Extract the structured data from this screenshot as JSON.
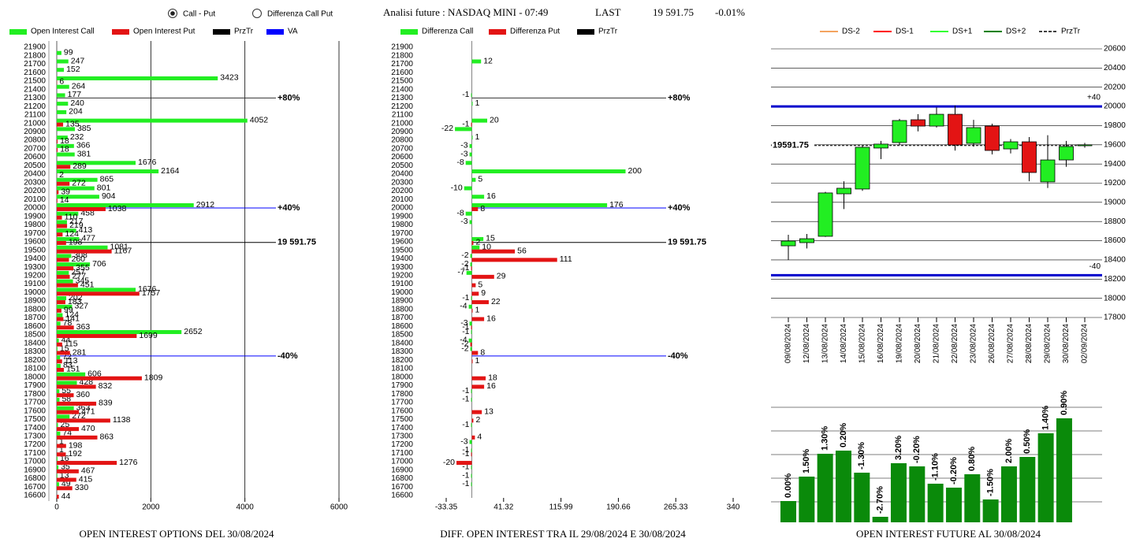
{
  "header": {
    "radio_options": [
      "Call - Put",
      "Differenza Call Put"
    ],
    "selected": 0,
    "title": "Analisi future : NASDAQ MINI - 07:49",
    "last_label": "LAST",
    "last_value": "19 591.75",
    "change": "-0.01%"
  },
  "chart_data": [
    {
      "type": "hbar",
      "title": "OPEN INTEREST OPTIONS DEL 30/08/2024",
      "categories": [
        21900,
        21800,
        21700,
        21600,
        21500,
        21400,
        21300,
        21200,
        21100,
        21000,
        20900,
        20800,
        20700,
        20600,
        20500,
        20400,
        20300,
        20200,
        20100,
        20000,
        19900,
        19800,
        19700,
        19600,
        19500,
        19400,
        19300,
        19200,
        19100,
        19000,
        18900,
        18800,
        18700,
        18600,
        18500,
        18400,
        18300,
        18200,
        18100,
        18000,
        17900,
        17800,
        17700,
        17600,
        17500,
        17400,
        17300,
        17200,
        17100,
        17000,
        16900,
        16800,
        16700,
        16600
      ],
      "series": [
        {
          "name": "Open Interest Call",
          "color": "#22ee22",
          "values": [
            0,
            99,
            247,
            152,
            3423,
            264,
            177,
            240,
            204,
            4052,
            385,
            232,
            366,
            381,
            1676,
            2164,
            865,
            801,
            904,
            2912,
            458,
            217,
            413,
            477,
            1081,
            308,
            706,
            257,
            345,
            1676,
            202,
            327,
            124,
            78,
            2652,
            44,
            15,
            72,
            83,
            606,
            428,
            55,
            58,
            363,
            272,
            25,
            74,
            1,
            1,
            16,
            35,
            13,
            49,
            0
          ]
        },
        {
          "name": "Open Interest Put",
          "color": "#e31414",
          "values": [
            0,
            0,
            0,
            0,
            6,
            0,
            0,
            0,
            0,
            135,
            0,
            18,
            18,
            0,
            289,
            2,
            272,
            39,
            14,
            1038,
            110,
            219,
            124,
            198,
            1167,
            260,
            355,
            277,
            451,
            1757,
            183,
            99,
            141,
            363,
            1699,
            115,
            281,
            113,
            151,
            1809,
            832,
            360,
            839,
            471,
            1138,
            470,
            863,
            198,
            192,
            1276,
            467,
            415,
            330,
            44
          ]
        }
      ],
      "extra_legend": [
        {
          "name": "PrzTr",
          "color": "#000000"
        },
        {
          "name": "VA",
          "color": "#0000ff"
        }
      ],
      "xlim": [
        0,
        6000
      ],
      "xticks": [
        0,
        2000,
        4000,
        6000
      ],
      "grid": true,
      "reference_lines": [
        {
          "value": 21300,
          "label": "+80%",
          "color": "#333333"
        },
        {
          "value": 20000,
          "label": "+40%",
          "color": "#0000ff"
        },
        {
          "value": 19591.75,
          "label": "19 591.75",
          "color": "#000000"
        },
        {
          "value": 18250,
          "label": "-40%",
          "color": "#0000ff"
        }
      ]
    },
    {
      "type": "hbar",
      "title": "DIFF. OPEN INTEREST TRA IL 29/08/2024 E 30/08/2024",
      "categories": [
        21900,
        21800,
        21700,
        21600,
        21500,
        21400,
        21300,
        21200,
        21100,
        21000,
        20900,
        20800,
        20700,
        20600,
        20500,
        20400,
        20300,
        20200,
        20100,
        20000,
        19900,
        19800,
        19700,
        19600,
        19500,
        19400,
        19300,
        19200,
        19100,
        19000,
        18900,
        18800,
        18700,
        18600,
        18500,
        18400,
        18300,
        18200,
        18100,
        18000,
        17900,
        17800,
        17700,
        17600,
        17500,
        17400,
        17300,
        17200,
        17100,
        17000,
        16900,
        16800,
        16700,
        16600
      ],
      "series": [
        {
          "name": "Differenza Call",
          "color": "#22ee22",
          "values": [
            0,
            0,
            12,
            0,
            0,
            0,
            -1,
            1,
            0,
            20,
            -22,
            1,
            -3,
            -3,
            -8,
            200,
            5,
            -10,
            16,
            176,
            -8,
            -3,
            0,
            15,
            10,
            -2,
            -2,
            -7,
            0,
            0,
            -1,
            -4,
            0,
            -3,
            -1,
            -4,
            -2,
            0,
            0,
            0,
            0,
            -1,
            -1,
            0,
            0,
            -1,
            0,
            -3,
            -1,
            0,
            -1,
            -1,
            -1,
            0
          ]
        },
        {
          "name": "Differenza Put",
          "color": "#e31414",
          "values": [
            0,
            0,
            0,
            0,
            0,
            0,
            0,
            0,
            0,
            -1,
            0,
            0,
            0,
            0,
            0,
            0,
            0,
            0,
            0,
            8,
            0,
            0,
            0,
            2,
            56,
            111,
            -1,
            29,
            5,
            9,
            22,
            1,
            16,
            -1,
            0,
            -2,
            8,
            1,
            0,
            18,
            16,
            0,
            0,
            13,
            2,
            0,
            4,
            0,
            -1,
            -20,
            0,
            0,
            0,
            0
          ]
        }
      ],
      "extra_legend": [
        {
          "name": "PrzTr",
          "color": "#000000"
        }
      ],
      "xlim": [
        -33.35,
        340
      ],
      "xticks": [
        -33.35,
        41.32,
        115.99,
        190.66,
        265.33,
        340
      ],
      "grid": false,
      "reference_lines": [
        {
          "value": 21300,
          "label": "+80%",
          "color": "#333333"
        },
        {
          "value": 20000,
          "label": "+40%",
          "color": "#0000ff"
        },
        {
          "value": 19591.75,
          "label": "19 591.75",
          "color": "#000000"
        },
        {
          "value": 18250,
          "label": "-40%",
          "color": "#0000ff"
        }
      ]
    },
    {
      "type": "candlestick",
      "categories": [
        "09/08/2024",
        "12/08/2024",
        "13/08/2024",
        "14/08/2024",
        "15/08/2024",
        "16/08/2024",
        "19/08/2024",
        "20/08/2024",
        "21/08/2024",
        "22/08/2024",
        "23/08/2024",
        "26/08/2024",
        "27/08/2024",
        "28/08/2024",
        "29/08/2024",
        "30/08/2024",
        "02/09/2024"
      ],
      "open": [
        18547,
        18580,
        18646,
        19089,
        19139,
        19566,
        19623,
        19861,
        19795,
        19918,
        19615,
        19795,
        19557,
        19631,
        19213,
        19442,
        19590
      ],
      "high": [
        18662,
        18670,
        19110,
        19220,
        19590,
        19640,
        19870,
        19920,
        19990,
        20010,
        19860,
        19820,
        19660,
        19680,
        19700,
        19640,
        19620
      ],
      "low": [
        18400,
        18520,
        18640,
        18930,
        19120,
        19450,
        19600,
        19740,
        19780,
        19540,
        19580,
        19500,
        19510,
        19220,
        19150,
        19370,
        19570
      ],
      "close": [
        18597,
        18621,
        19098,
        19147,
        19574,
        19607,
        19853,
        19795,
        19918,
        19598,
        19779,
        19541,
        19631,
        19311,
        19442,
        19582,
        19600
      ],
      "up_color": "#22ee22",
      "down_color": "#e31414",
      "legend": [
        {
          "name": "DS-2",
          "color": "#f4a460"
        },
        {
          "name": "DS-1",
          "color": "#ff0000"
        },
        {
          "name": "DS+1",
          "color": "#33ff33"
        },
        {
          "name": "DS+2",
          "color": "#008000"
        },
        {
          "name": "PrzTr",
          "color": "#000000",
          "dashed": true
        }
      ],
      "ylim": [
        17800,
        20600
      ],
      "yticks": [
        17800,
        18000,
        18200,
        18400,
        18600,
        18800,
        19000,
        19200,
        19400,
        19600,
        19800,
        20000,
        20200,
        20400,
        20600
      ],
      "grid": true,
      "reference_lines": [
        {
          "value": 20000,
          "label": "+40",
          "color": "#0000cc"
        },
        {
          "value": 18240,
          "label": "-40",
          "color": "#0000cc"
        },
        {
          "value": 19591.75,
          "label": "19591.75",
          "color": "#000000",
          "dashed": true
        }
      ]
    },
    {
      "type": "bar",
      "title": "OPEN INTEREST FUTURE AL 30/08/2024",
      "values": [
        27,
        58,
        87,
        91,
        63,
        7,
        75,
        71,
        49,
        44,
        61,
        29,
        71,
        83,
        113,
        132
      ],
      "change_labels": [
        "0.00%",
        "1.50%",
        "1.30%",
        "0.20%",
        "-1.30%",
        "-2.70%",
        "3.20%",
        "-0.20%",
        "-1.10%",
        "-0.20%",
        "0.80%",
        "-1.50%",
        "2.00%",
        "0.50%",
        "1.40%",
        "0.90%"
      ],
      "color": "#0a8a0a",
      "ylim": [
        0,
        150
      ]
    }
  ]
}
